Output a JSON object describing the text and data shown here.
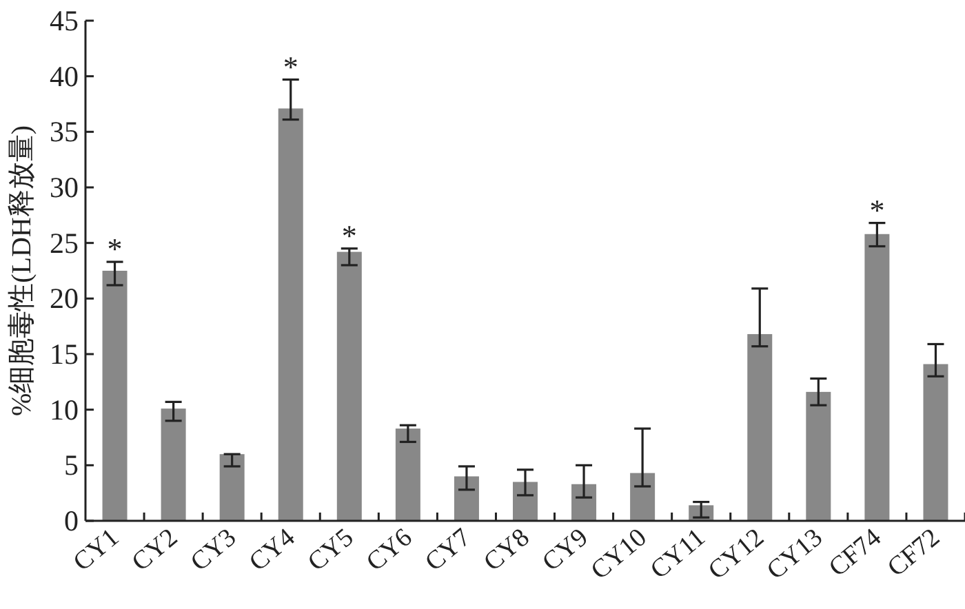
{
  "chart_data": {
    "type": "bar",
    "ylabel": "%细胞毒性(LDH释放量)",
    "categories": [
      "CY1",
      "CY2",
      "CY3",
      "CY4",
      "CY5",
      "CY6",
      "CY7",
      "CY8",
      "CY9",
      "CY10",
      "CY11",
      "CY12",
      "CY13",
      "CF74",
      "CF72"
    ],
    "series": [
      {
        "color": "#888888",
        "values": [
          22.5,
          10.1,
          6.0,
          37.1,
          24.2,
          8.3,
          4.0,
          3.5,
          3.3,
          4.3,
          1.4,
          16.8,
          11.6,
          25.8,
          14.1
        ],
        "errors": [
          [
            21.2,
            23.3
          ],
          [
            9.0,
            10.7
          ],
          [
            4.9,
            6.0
          ],
          [
            36.1,
            39.7
          ],
          [
            23.0,
            24.5
          ],
          [
            7.1,
            8.6
          ],
          [
            2.8,
            4.9
          ],
          [
            2.3,
            4.6
          ],
          [
            2.1,
            5.0
          ],
          [
            3.1,
            8.3
          ],
          [
            0.3,
            1.7
          ],
          [
            15.7,
            20.9
          ],
          [
            10.4,
            12.8
          ],
          [
            24.7,
            26.8
          ],
          [
            13.0,
            15.9
          ]
        ]
      }
    ],
    "ylim": [
      0,
      45
    ],
    "yticks": [
      0,
      5,
      10,
      15,
      20,
      25,
      30,
      35,
      40,
      45
    ],
    "grid": false,
    "annotations": [
      {
        "text": "*",
        "x": "CY1",
        "y": 23.3
      },
      {
        "text": "*",
        "x": "CY4",
        "y": 39.7
      },
      {
        "text": "*",
        "x": "CY5",
        "y": 24.5
      },
      {
        "text": "*",
        "x": "CF74",
        "y": 26.8
      }
    ]
  }
}
